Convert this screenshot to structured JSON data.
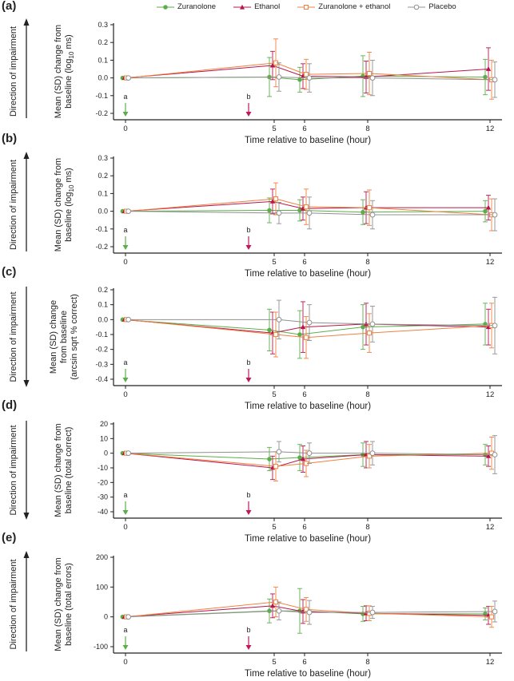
{
  "legend": {
    "zur": "Zuranolone",
    "eth": "Ethanol",
    "zureth": "Zuranolone + ethanol",
    "plc": "Placebo"
  },
  "colors": {
    "zur": "#5cae4a",
    "eth": "#b5174b",
    "zureth": "#f08040",
    "plc": "#909090",
    "arrow_a": "#5cae4a",
    "arrow_b": "#c2185b"
  },
  "common": {
    "xlabel": "Time relative to baseline (hour)",
    "side_label": "Direction of impairment",
    "marker_a": "a",
    "marker_b": "b",
    "x_ticks": [
      "0",
      "5",
      "6",
      "8",
      "12"
    ]
  },
  "chart_data": [
    {
      "type": "line",
      "panel": "(a)",
      "ylabel_line1": "Mean (SD) change from",
      "ylabel_line2": "baseline (log",
      "ylabel_sub": "10",
      "ylabel_tail": " ms)",
      "impair": "up",
      "ylim": [
        -0.2,
        0.3
      ],
      "yticks": [
        "-0.2",
        "-0.1",
        "0.0",
        "0.1",
        "0.2",
        "0.3"
      ],
      "ytick_values": [
        -0.2,
        -0.1,
        0.0,
        0.1,
        0.2,
        0.3
      ],
      "x": [
        0,
        5,
        6,
        8,
        12
      ],
      "series": [
        {
          "key": "zur",
          "name": "Zuranolone",
          "values": [
            0,
            0.005,
            -0.01,
            0.01,
            0.005
          ],
          "sd": [
            0,
            0.11,
            0.07,
            0.115,
            0.1
          ]
        },
        {
          "key": "eth",
          "name": "Ethanol",
          "values": [
            0,
            0.07,
            0.01,
            0.005,
            0.05
          ],
          "sd": [
            0,
            0.08,
            0.07,
            0.09,
            0.12
          ]
        },
        {
          "key": "zureth",
          "name": "Zuranolone + ethanol",
          "values": [
            0,
            0.085,
            0.02,
            0.025,
            -0.01
          ],
          "sd": [
            0,
            0.135,
            0.085,
            0.12,
            0.11
          ]
        },
        {
          "key": "plc",
          "name": "Placebo",
          "values": [
            0,
            0.005,
            0.0,
            0.0,
            -0.01
          ],
          "sd": [
            0,
            0.08,
            0.08,
            0.1,
            0.1
          ]
        }
      ]
    },
    {
      "type": "line",
      "panel": "(b)",
      "ylabel_line1": "Mean (SD) change from",
      "ylabel_line2": "baseline (log",
      "ylabel_sub": "10",
      "ylabel_tail": " ms)",
      "impair": "up",
      "ylim": [
        -0.2,
        0.3
      ],
      "yticks": [
        "-0.2",
        "-0.1",
        "0.0",
        "0.1",
        "0.2",
        "0.3"
      ],
      "ytick_values": [
        -0.2,
        -0.1,
        0.0,
        0.1,
        0.2,
        0.3
      ],
      "x": [
        0,
        5,
        6,
        8,
        12
      ],
      "series": [
        {
          "key": "zur",
          "name": "Zuranolone",
          "values": [
            0,
            0.005,
            0.005,
            -0.005,
            0.0
          ],
          "sd": [
            0,
            0.07,
            0.06,
            0.07,
            0.06
          ]
        },
        {
          "key": "eth",
          "name": "Ethanol",
          "values": [
            0,
            0.055,
            0.015,
            0.02,
            0.02
          ],
          "sd": [
            0,
            0.07,
            0.065,
            0.09,
            0.07
          ]
        },
        {
          "key": "zureth",
          "name": "Zuranolone + ethanol",
          "values": [
            0,
            0.07,
            0.025,
            0.02,
            -0.02
          ],
          "sd": [
            0,
            0.09,
            0.1,
            0.1,
            0.09
          ]
        },
        {
          "key": "plc",
          "name": "Placebo",
          "values": [
            0,
            -0.01,
            -0.01,
            -0.02,
            -0.02
          ],
          "sd": [
            0,
            0.06,
            0.09,
            0.08,
            0.09
          ]
        }
      ]
    },
    {
      "type": "line",
      "panel": "(c)",
      "ylabel_line1": "Mean (SD) change",
      "ylabel_line2": "from baseline",
      "ylabel_line3": "(arcsin sqrt % correct)",
      "impair": "down",
      "ylim": [
        -0.4,
        0.2
      ],
      "yticks": [
        "-0.4",
        "-0.3",
        "-0.2",
        "-0.1",
        "0.0",
        "0.1",
        "0.2"
      ],
      "ytick_values": [
        -0.4,
        -0.3,
        -0.2,
        -0.1,
        0.0,
        0.1,
        0.2
      ],
      "x": [
        0,
        5,
        6,
        8,
        12
      ],
      "series": [
        {
          "key": "zur",
          "name": "Zuranolone",
          "values": [
            0,
            -0.07,
            -0.1,
            -0.05,
            -0.03
          ],
          "sd": [
            0,
            0.14,
            0.16,
            0.15,
            0.14
          ]
        },
        {
          "key": "eth",
          "name": "Ethanol",
          "values": [
            0,
            -0.09,
            -0.05,
            -0.03,
            -0.05
          ],
          "sd": [
            0,
            0.14,
            0.17,
            0.14,
            0.12
          ]
        },
        {
          "key": "zureth",
          "name": "Zuranolone + ethanol",
          "values": [
            0,
            -0.1,
            -0.12,
            -0.09,
            -0.04
          ],
          "sd": [
            0,
            0.15,
            0.14,
            0.13,
            0.15
          ]
        },
        {
          "key": "plc",
          "name": "Placebo",
          "values": [
            0,
            0.0,
            -0.02,
            -0.03,
            -0.04
          ],
          "sd": [
            0,
            0.13,
            0.12,
            0.12,
            0.19
          ]
        }
      ]
    },
    {
      "type": "line",
      "panel": "(d)",
      "ylabel_line1": "Mean (SD) change from",
      "ylabel_line2": "baseline (total correct)",
      "impair": "down",
      "ylim": [
        -40,
        20
      ],
      "yticks": [
        "-40",
        "-30",
        "-20",
        "-10",
        "0",
        "10",
        "20"
      ],
      "ytick_values": [
        -40,
        -30,
        -20,
        -10,
        0,
        10,
        20
      ],
      "x": [
        0,
        5,
        6,
        8,
        12
      ],
      "series": [
        {
          "key": "zur",
          "name": "Zuranolone",
          "values": [
            0,
            -4,
            -3,
            -1,
            -1
          ],
          "sd": [
            0,
            8,
            9,
            8,
            7
          ]
        },
        {
          "key": "eth",
          "name": "Ethanol",
          "values": [
            0,
            -10,
            -4,
            -1,
            -2
          ],
          "sd": [
            0,
            8,
            9,
            9,
            7
          ]
        },
        {
          "key": "zureth",
          "name": "Zuranolone + ethanol",
          "values": [
            0,
            -9,
            -7,
            -2,
            0
          ],
          "sd": [
            0,
            10,
            9,
            8,
            11
          ]
        },
        {
          "key": "plc",
          "name": "Placebo",
          "values": [
            0,
            1,
            0,
            0,
            -1
          ],
          "sd": [
            0,
            7,
            7,
            8,
            13
          ]
        }
      ]
    },
    {
      "type": "line",
      "panel": "(e)",
      "ylabel_line1": "Mean (SD) change from",
      "ylabel_line2": "baseline (total errors)",
      "impair": "up",
      "ylim": [
        -100,
        200
      ],
      "yticks": [
        "-100",
        "0",
        "100",
        "200"
      ],
      "ytick_values": [
        -100,
        0,
        100,
        200
      ],
      "x": [
        0,
        5,
        6,
        8,
        12
      ],
      "series": [
        {
          "key": "zur",
          "name": "Zuranolone",
          "values": [
            0,
            20,
            20,
            10,
            10
          ],
          "sd": [
            0,
            40,
            75,
            25,
            20
          ]
        },
        {
          "key": "eth",
          "name": "Ethanol",
          "values": [
            0,
            37,
            18,
            12,
            5
          ],
          "sd": [
            0,
            40,
            40,
            25,
            30
          ]
        },
        {
          "key": "zureth",
          "name": "Zuranolone + ethanol",
          "values": [
            0,
            50,
            25,
            12,
            0
          ],
          "sd": [
            0,
            50,
            40,
            25,
            35
          ]
        },
        {
          "key": "plc",
          "name": "Placebo",
          "values": [
            0,
            20,
            15,
            15,
            18
          ],
          "sd": [
            0,
            30,
            40,
            20,
            35
          ]
        }
      ]
    }
  ]
}
